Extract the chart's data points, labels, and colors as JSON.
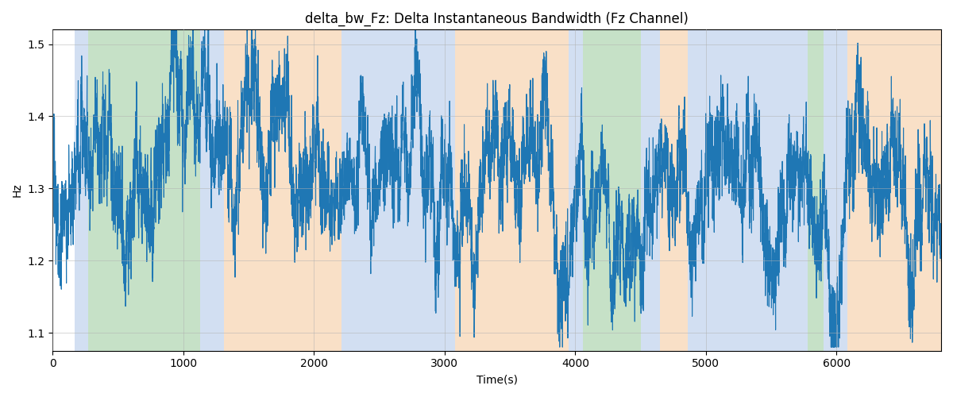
{
  "title": "delta_bw_Fz: Delta Instantaneous Bandwidth (Fz Channel)",
  "xlabel": "Time(s)",
  "ylabel": "Hz",
  "ylim": [
    1.075,
    1.52
  ],
  "xlim": [
    0,
    6800
  ],
  "line_color": "#1f77b4",
  "line_width": 0.8,
  "bg_bands": [
    {
      "xstart": 170,
      "xend": 270,
      "color": "#aec6e8",
      "alpha": 0.55
    },
    {
      "xstart": 270,
      "xend": 1130,
      "color": "#98c99a",
      "alpha": 0.55
    },
    {
      "xstart": 1130,
      "xend": 1310,
      "color": "#aec6e8",
      "alpha": 0.55
    },
    {
      "xstart": 1310,
      "xend": 2210,
      "color": "#f5c89a",
      "alpha": 0.55
    },
    {
      "xstart": 2210,
      "xend": 3080,
      "color": "#aec6e8",
      "alpha": 0.55
    },
    {
      "xstart": 3080,
      "xend": 3950,
      "color": "#f5c89a",
      "alpha": 0.55
    },
    {
      "xstart": 3950,
      "xend": 4060,
      "color": "#aec6e8",
      "alpha": 0.55
    },
    {
      "xstart": 4060,
      "xend": 4500,
      "color": "#98c99a",
      "alpha": 0.55
    },
    {
      "xstart": 4500,
      "xend": 4650,
      "color": "#aec6e8",
      "alpha": 0.55
    },
    {
      "xstart": 4650,
      "xend": 4860,
      "color": "#f5c89a",
      "alpha": 0.55
    },
    {
      "xstart": 4860,
      "xend": 5780,
      "color": "#aec6e8",
      "alpha": 0.55
    },
    {
      "xstart": 5780,
      "xend": 5900,
      "color": "#98c99a",
      "alpha": 0.55
    },
    {
      "xstart": 5900,
      "xend": 6080,
      "color": "#aec6e8",
      "alpha": 0.55
    },
    {
      "xstart": 6080,
      "xend": 6800,
      "color": "#f5c89a",
      "alpha": 0.55
    }
  ],
  "seed": 42,
  "n_points": 6700,
  "signal_mean": 1.315,
  "xticks": [
    0,
    1000,
    2000,
    3000,
    4000,
    5000,
    6000
  ],
  "yticks": [
    1.1,
    1.2,
    1.3,
    1.4,
    1.5
  ],
  "grid_color": "#b0b0b0",
  "grid_alpha": 0.7,
  "figsize": [
    12,
    5
  ],
  "dpi": 100
}
